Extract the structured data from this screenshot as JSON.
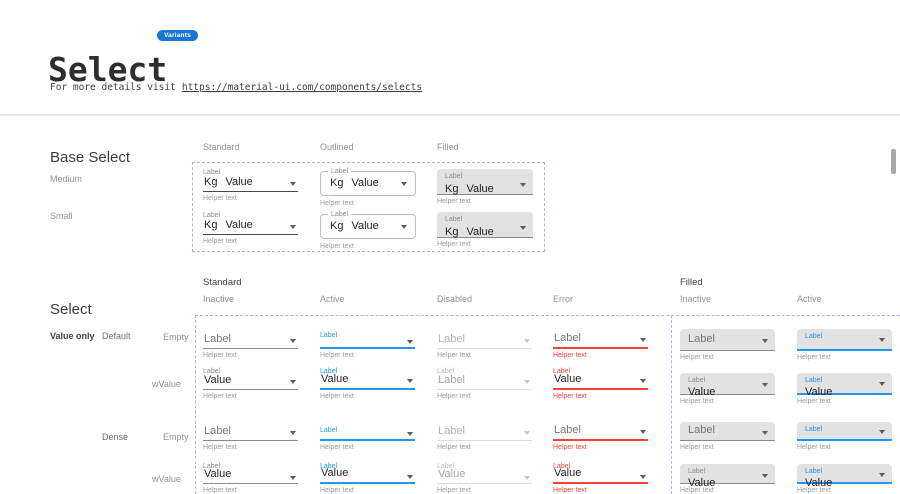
{
  "header": {
    "title": "Select",
    "badge": "Variants",
    "subtitle_prefix": "For more details visit",
    "subtitle_link": "https://material-ui.com/components/selects"
  },
  "colors": {
    "accent": "#2196F3",
    "error": "#F44336",
    "badge": "#1976D2",
    "dashed_frame": "#A9B2F0",
    "filled_background": "#E2E2E2"
  },
  "base_select": {
    "heading": "Base Select",
    "column_headers": [
      "Standard",
      "Outlined",
      "Filled"
    ],
    "row_headers": [
      "Medium",
      "Small"
    ],
    "cell": {
      "label": "Label",
      "prefix": "Kg",
      "value": "Value",
      "helper": "Helper text"
    }
  },
  "select_grid": {
    "heading": "Select",
    "group_headers": [
      "Standard",
      "Filled"
    ],
    "column_headers": [
      "Inactive",
      "Active",
      "Disabled",
      "Error",
      "Inactive",
      "Active"
    ],
    "row_axis": {
      "primary": "Value only",
      "groups": [
        {
          "label": "Default",
          "rows": [
            "Empty",
            "wValue"
          ]
        },
        {
          "label": "Dense",
          "rows": [
            "Empty",
            "wValue"
          ]
        }
      ]
    },
    "rows": [
      {
        "cells": [
          {
            "variant": "standard",
            "state": "inactive",
            "placeholder": "Label",
            "helper": "Helper text"
          },
          {
            "variant": "standard",
            "state": "active",
            "mini": "Label",
            "helper": "Helper text"
          },
          {
            "variant": "standard",
            "state": "disabled",
            "placeholder": "Label",
            "helper": "Helper text"
          },
          {
            "variant": "standard",
            "state": "error",
            "placeholder": "Label",
            "helper": "Helper text"
          },
          {
            "variant": "filled",
            "state": "inactive",
            "placeholder": "Label",
            "helper": "Helper text"
          },
          {
            "variant": "filled",
            "state": "active",
            "mini": "Label",
            "helper": "Helper text"
          }
        ]
      },
      {
        "cells": [
          {
            "variant": "standard",
            "state": "inactive",
            "mini": "Label",
            "value": "Value",
            "helper": "Helper text"
          },
          {
            "variant": "standard",
            "state": "active",
            "mini": "Label",
            "value": "Value",
            "helper": "Helper text"
          },
          {
            "variant": "standard",
            "state": "disabled",
            "mini": "Label",
            "value": "Label",
            "helper": "Helper text"
          },
          {
            "variant": "standard",
            "state": "error",
            "mini": "Label",
            "value": "Value",
            "helper": "Helper text"
          },
          {
            "variant": "filled",
            "state": "inactive",
            "mini": "Label",
            "value": "Value",
            "helper": "Helper text"
          },
          {
            "variant": "filled",
            "state": "active",
            "mini": "Label",
            "value": "Value",
            "helper": "Helper text"
          }
        ]
      },
      {
        "cells": [
          {
            "variant": "standard",
            "state": "inactive",
            "placeholder": "Label",
            "helper": "Helper text"
          },
          {
            "variant": "standard",
            "state": "active",
            "mini": "Label",
            "helper": "Helper text"
          },
          {
            "variant": "standard",
            "state": "disabled",
            "placeholder": "Label",
            "helper": "Helper text"
          },
          {
            "variant": "standard",
            "state": "error",
            "placeholder": "Label",
            "helper": "Helper text"
          },
          {
            "variant": "filled",
            "state": "inactive",
            "placeholder": "Label",
            "helper": "Helper text"
          },
          {
            "variant": "filled",
            "state": "active",
            "mini": "Label",
            "helper": "Helper text"
          }
        ]
      },
      {
        "cells": [
          {
            "variant": "standard",
            "state": "inactive",
            "mini": "Label",
            "value": "Value",
            "helper": "Helper text"
          },
          {
            "variant": "standard",
            "state": "active",
            "mini": "Label",
            "value": "Value",
            "helper": "Helper text"
          },
          {
            "variant": "standard",
            "state": "disabled",
            "mini": "Label",
            "value": "Value",
            "helper": "Helper text"
          },
          {
            "variant": "standard",
            "state": "error",
            "mini": "Label",
            "value": "Value",
            "helper": "Helper text"
          },
          {
            "variant": "filled",
            "state": "inactive",
            "mini": "Label",
            "value": "Value",
            "helper": "Helper text"
          },
          {
            "variant": "filled",
            "state": "active",
            "mini": "Label",
            "value": "Value",
            "helper": "Helper text"
          }
        ]
      }
    ]
  }
}
